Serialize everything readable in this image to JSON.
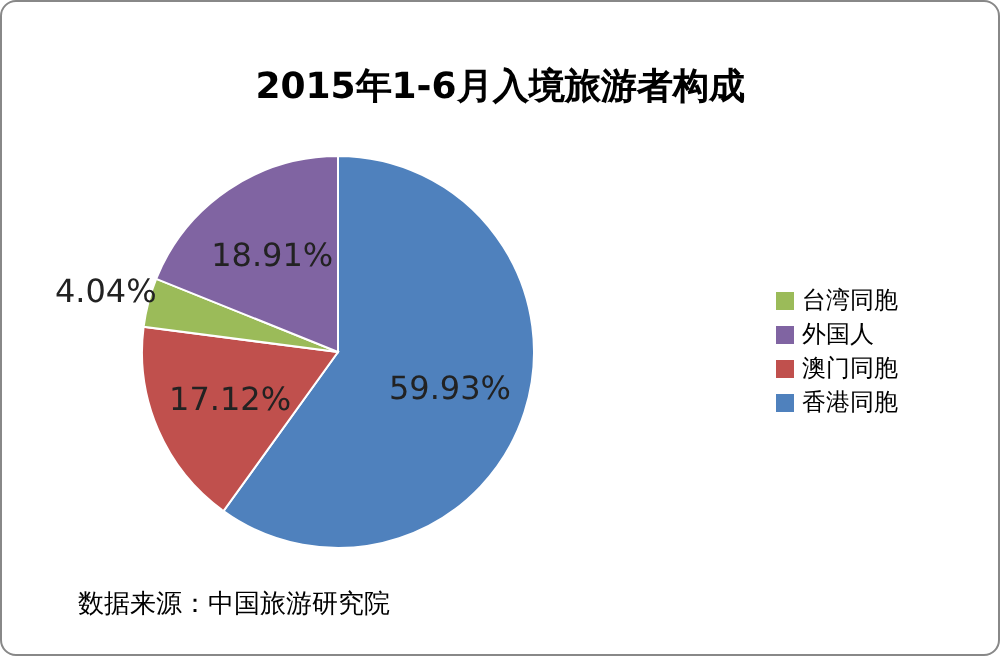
{
  "chart_data": {
    "type": "pie",
    "title": "2015年1-6月入境旅游者构成",
    "categories": [
      "香港同胞",
      "澳门同胞",
      "台湾同胞",
      "外国人"
    ],
    "values": [
      59.93,
      17.12,
      4.04,
      18.91
    ],
    "colors": [
      "#4f81bd",
      "#c0504d",
      "#9bbb59",
      "#8064a2"
    ],
    "value_labels": [
      "59.93%",
      "17.12%",
      "4.04%",
      "18.91%"
    ],
    "legend": "right",
    "annotations": [
      "数据来源：中国旅游研究院"
    ]
  }
}
